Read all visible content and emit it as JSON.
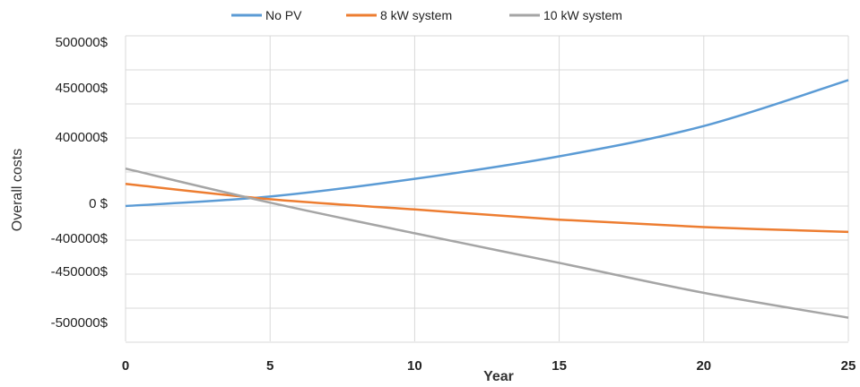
{
  "chart_data": {
    "type": "line",
    "title": "",
    "xlabel": "Year",
    "ylabel": "Overall costs",
    "xlim": [
      0,
      25
    ],
    "x_ticks": [
      "0",
      "5",
      "10",
      "15",
      "20",
      "25"
    ],
    "y_tick_labels": [
      "500000$",
      "450000$",
      "400000$",
      "0 $",
      "-400000$",
      "-450000$",
      "-500000$"
    ],
    "grid": true,
    "legend_position": "top",
    "x": [
      0,
      5,
      10,
      15,
      20,
      25
    ],
    "series": [
      {
        "name": "No PV",
        "color": "#5b9bd5",
        "values": [
          0,
          0.28,
          0.8,
          1.46,
          2.35,
          3.7
        ]
      },
      {
        "name": "8 kW system",
        "color": "#ed7d31",
        "values": [
          0.65,
          0.2,
          -0.1,
          -0.4,
          -0.62,
          -0.76
        ]
      },
      {
        "name": "10 kW system",
        "color": "#a5a5a5",
        "values": [
          1.1,
          0.1,
          -0.8,
          -1.67,
          -2.55,
          -3.28
        ]
      }
    ]
  }
}
